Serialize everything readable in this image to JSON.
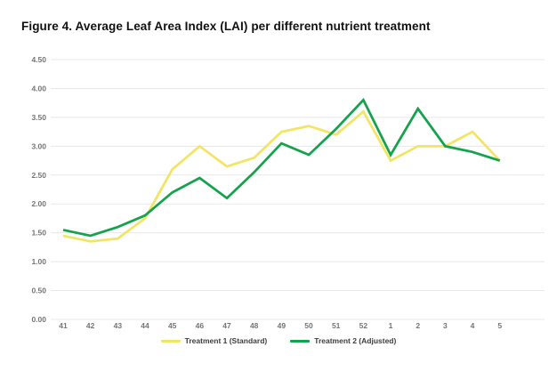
{
  "title": "Figure 4. Average Leaf Area Index (LAI) per different nutrient treatment",
  "colors": {
    "background": "#ffffff",
    "title_text": "#111111",
    "gridline": "#e8e8e8",
    "axis_label": "#757575",
    "legend_text": "#3d3d3d",
    "treatment1": "#f2e566",
    "treatment2": "#14a34c"
  },
  "chart_data": {
    "type": "line",
    "title": "Figure 4. Average Leaf Area Index (LAI) per different nutrient treatment",
    "xlabel": "",
    "ylabel": "",
    "categories": [
      "41",
      "42",
      "43",
      "44",
      "45",
      "46",
      "47",
      "48",
      "49",
      "50",
      "51",
      "52",
      "1",
      "2",
      "3",
      "4",
      "5"
    ],
    "series": [
      {
        "name": "Treatment 1 (Standard)",
        "color_key": "treatment1",
        "values": [
          1.45,
          1.35,
          1.4,
          1.75,
          2.6,
          3.0,
          2.65,
          2.8,
          3.25,
          3.35,
          3.2,
          3.6,
          2.75,
          3.0,
          3.0,
          3.25,
          2.75
        ]
      },
      {
        "name": "Treatment 2 (Adjusted)",
        "color_key": "treatment2",
        "values": [
          1.55,
          1.45,
          1.6,
          1.8,
          2.2,
          2.45,
          2.1,
          2.55,
          3.05,
          2.85,
          3.3,
          3.8,
          2.85,
          3.65,
          3.0,
          2.9,
          2.75
        ]
      }
    ],
    "ylim": [
      0,
      4.5
    ],
    "ytick_step": 0.5,
    "ytick_labels": [
      "0.00",
      "0.50",
      "1.00",
      "1.50",
      "2.00",
      "2.50",
      "3.00",
      "3.50",
      "4.00",
      "4.50"
    ],
    "grid": true,
    "legend_position": "bottom-center"
  }
}
